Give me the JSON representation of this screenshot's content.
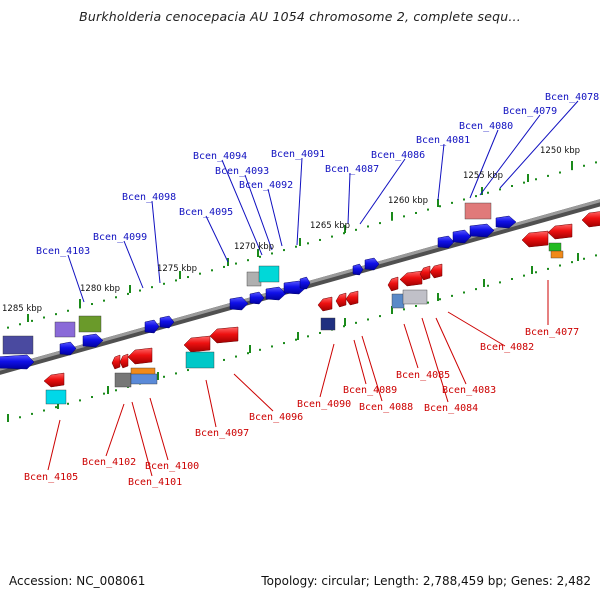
{
  "header": {
    "title": "Burkholderia cenocepacia AU 1054 chromosome 2, complete sequ..."
  },
  "footer": {
    "accession": "Accession: NC_008061",
    "stats": "Topology: circular; Length: 2,788,459 bp; Genes: 2,482"
  },
  "colors": {
    "forward_strand": "#1010e8",
    "reverse_strand": "#ee1010",
    "backbone": "#808080",
    "scale_ticks": "#1a8a1a",
    "label_forward": "#1010c0",
    "label_reverse": "#cc0000"
  },
  "scale_labels": [
    "1285 kbp",
    "1280 kbp",
    "1275 kbp",
    "1270 kbp",
    "1265 kbp",
    "1260 kbp",
    "1255 kbp",
    "1250 kbp"
  ],
  "forward_genes": [
    "Bcen_4078",
    "Bcen_4079",
    "Bcen_4080",
    "Bcen_4081",
    "Bcen_4086",
    "Bcen_4087",
    "Bcen_4091",
    "Bcen_4092",
    "Bcen_4093",
    "Bcen_4094",
    "Bcen_4095",
    "Bcen_4098",
    "Bcen_4099",
    "Bcen_4103"
  ],
  "reverse_genes": [
    "Bcen_4077",
    "Bcen_4082",
    "Bcen_4083",
    "Bcen_4084",
    "Bcen_4085",
    "Bcen_4088",
    "Bcen_4089",
    "Bcen_4090",
    "Bcen_4096",
    "Bcen_4097",
    "Bcen_4100",
    "Bcen_4101",
    "Bcen_4102",
    "Bcen_4105"
  ]
}
